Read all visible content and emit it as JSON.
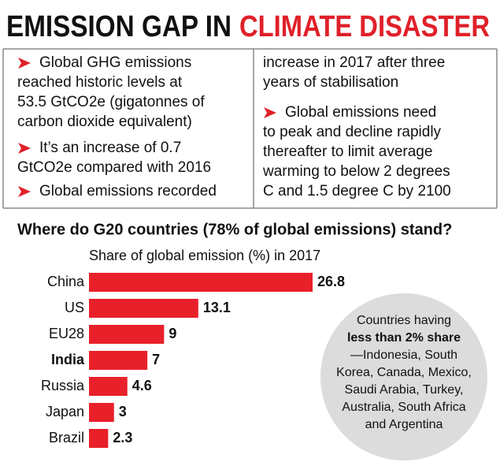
{
  "header": {
    "title_part1": "EMISSION GAP IN",
    "title_part2": "CLIMATE DISASTER"
  },
  "bullets": [
    [
      "Global GHG emissions",
      "reached historic levels at",
      "53.5 GtCO2e (gigatonnes of",
      "carbon dioxide equivalent)"
    ],
    [
      "It’s an increase of 0.7",
      "GtCO2e compared with 2016"
    ],
    [
      "Global emissions recorded",
      "increase in 2017 after three",
      "years of stabilisation"
    ],
    [
      "Global emissions need",
      "to peak and decline rapidly",
      "thereafter to limit average",
      "warming to below 2 degrees",
      "C and 1.5 degree C by 2100"
    ]
  ],
  "chart_data": {
    "type": "bar",
    "orientation": "horizontal",
    "title": "Where do G20 countries (78% of global emissions) stand?",
    "subtitle": "Share of global emission (%) in 2017",
    "categories": [
      "China",
      "US",
      "EU28",
      "India",
      "Russia",
      "Japan",
      "Brazil"
    ],
    "values": [
      26.8,
      13.1,
      9,
      7,
      4.6,
      3,
      2.3
    ],
    "color": "#e8202a"
  },
  "note": [
    "Countries having",
    "less than 2% share",
    "—Indonesia, South",
    "Korea, Canada, Mexico,",
    "Saudi Arabia, Turkey,",
    "Australia, South Africa",
    "and Argentina"
  ]
}
